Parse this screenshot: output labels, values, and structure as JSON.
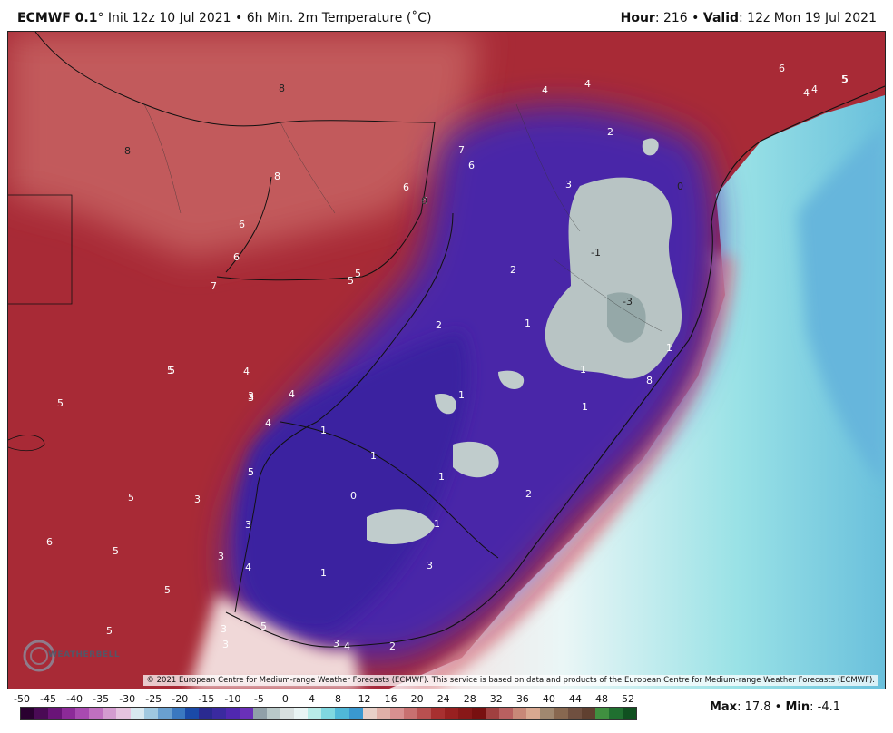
{
  "header": {
    "model": "ECMWF 0.1",
    "init_text": "° Init 12z 10 Jul 2021 • 6h Min. 2m Temperature (˚C)",
    "hour_label": "Hour",
    "hour_value": ": 216 • ",
    "valid_label": "Valid",
    "valid_value": ": 12z Mon 19 Jul 2021"
  },
  "map": {
    "copyright": "© 2021 European Centre for Medium-range Weather Forecasts (ECMWF). This service is based on data and products of the European Centre for Medium-range Weather Forecasts (ECMWF).",
    "logo_text": "WEATHERBELL",
    "contour_labels": [
      "8",
      "8",
      "8",
      "7",
      "6",
      "6",
      "6",
      "6",
      "6",
      "6",
      "5",
      "5",
      "5",
      "5",
      "5",
      "5",
      "5",
      "5",
      "5",
      "5",
      "5",
      "4",
      "4",
      "4",
      "4",
      "4",
      "4",
      "4",
      "3",
      "3",
      "3",
      "3",
      "3",
      "3",
      "3",
      "3",
      "3",
      "2",
      "2",
      "2",
      "2",
      "2",
      "1",
      "1",
      "1",
      "1",
      "1",
      "1",
      "1",
      "1",
      "1",
      "0",
      "0",
      "0",
      "-1",
      "-3",
      "1",
      "8",
      "5",
      "7",
      "6",
      "5",
      "4",
      "5",
      "4",
      "3"
    ]
  },
  "legend": {
    "ticks": [
      "-50",
      "-45",
      "-40",
      "-35",
      "-30",
      "-25",
      "-20",
      "-15",
      "-10",
      "-5",
      "0",
      "4",
      "8",
      "12",
      "16",
      "20",
      "24",
      "28",
      "32",
      "36",
      "40",
      "44",
      "48",
      "52"
    ],
    "colors": [
      "#2a0030",
      "#4a0a55",
      "#6a1478",
      "#8c2a98",
      "#a84ab0",
      "#c070c0",
      "#d49cd0",
      "#e6c4e0",
      "#d8e8f0",
      "#a0c8e0",
      "#6aa0d0",
      "#3a78c0",
      "#1a4aa8",
      "#2a2a90",
      "#3a2aa0",
      "#5028b0",
      "#6a30b8",
      "#90a0a8",
      "#b8c8c8",
      "#d8e0e0",
      "#e8f4f4",
      "#b8ece8",
      "#80d8e0",
      "#50b8d8",
      "#3a98d0",
      "#e8d0c8",
      "#e0b0a8",
      "#d89090",
      "#c87070",
      "#b85050",
      "#a83030",
      "#982020",
      "#881818",
      "#781010",
      "#a04040",
      "#b86060",
      "#c88878",
      "#d8a890",
      "#a08870",
      "#886850",
      "#705040",
      "#604030",
      "#409040",
      "#207030",
      "#105020"
    ],
    "max_label": "Max",
    "max_value": ": 17.8 • ",
    "min_label": "Min",
    "min_value": ": -4.1"
  }
}
